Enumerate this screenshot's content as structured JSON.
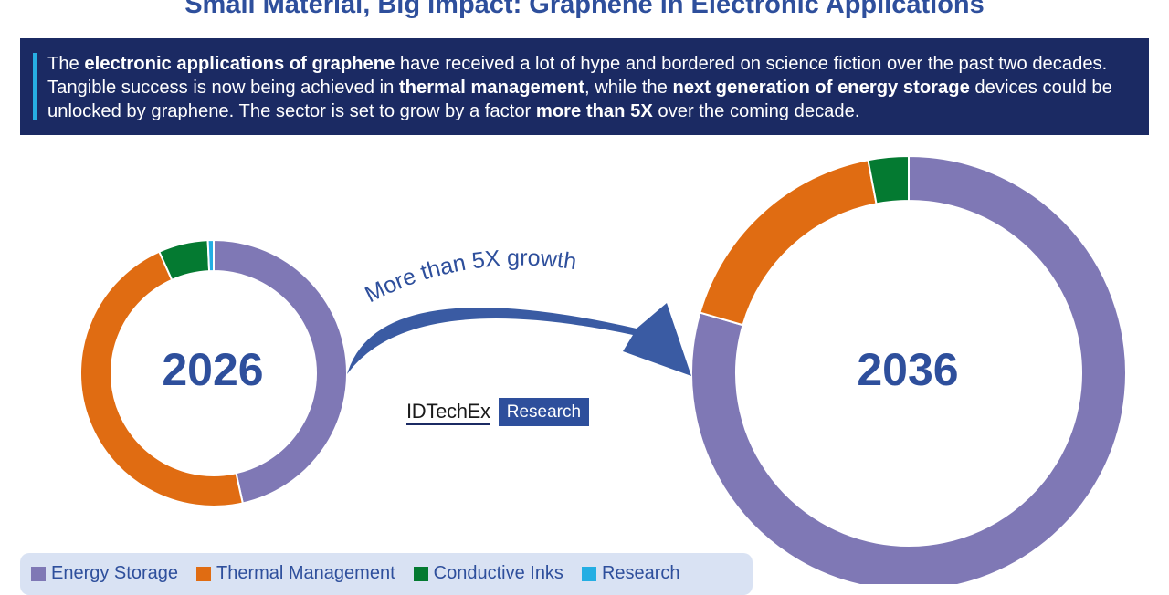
{
  "title": "Small Material, Big Impact: Graphene in Electronic Applications",
  "banner": {
    "segments": [
      {
        "text": "The ",
        "bold": false
      },
      {
        "text": "electronic applications of graphene",
        "bold": true
      },
      {
        "text": " have received a lot of hype and bordered on science fiction over the past two decades. Tangible success is now being achieved in ",
        "bold": false
      },
      {
        "text": "thermal management",
        "bold": true
      },
      {
        "text": ", while the ",
        "bold": false
      },
      {
        "text": "next generation of energy storage",
        "bold": true
      },
      {
        "text": " devices could be unlocked by graphene. The sector is set to grow by a factor ",
        "bold": false
      },
      {
        "text": "more than 5X",
        "bold": true
      },
      {
        "text": " over the coming decade.",
        "bold": false
      }
    ]
  },
  "arrow_label": "More than 5X growth",
  "logo": {
    "main": "IDTechEx",
    "sub": "Research"
  },
  "colors": {
    "energy_storage": "#7f78b5",
    "thermal_management": "#e06c12",
    "conductive_inks": "#047a31",
    "research": "#24aee3",
    "accent": "#2e4f9c",
    "banner": "#1b2a63"
  },
  "legend": [
    {
      "label": "Energy Storage",
      "color": "#7f78b5"
    },
    {
      "label": "Thermal Management",
      "color": "#e06c12"
    },
    {
      "label": "Conductive Inks",
      "color": "#047a31"
    },
    {
      "label": "Research",
      "color": "#24aee3"
    }
  ],
  "chart_data": [
    {
      "type": "pie",
      "style": "donut",
      "center_label": "2026",
      "categories": [
        "Energy Storage",
        "Thermal Management",
        "Conductive Inks",
        "Research"
      ],
      "values": [
        46.5,
        46.8,
        6.0,
        0.7
      ]
    },
    {
      "type": "pie",
      "style": "donut",
      "center_label": "2036",
      "categories": [
        "Energy Storage",
        "Thermal Management",
        "Conductive Inks",
        "Research"
      ],
      "values": [
        79.5,
        17.5,
        3.0,
        0.0
      ]
    }
  ]
}
